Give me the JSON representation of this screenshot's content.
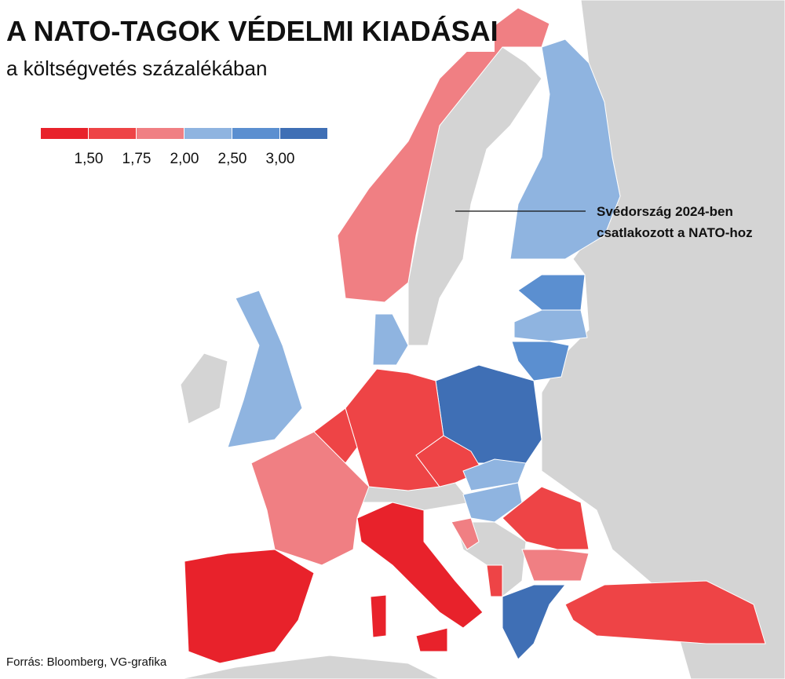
{
  "header": {
    "title": "A NATO-TAGOK VÉDELMI KIADÁSAI",
    "subtitle": "a költségvetés százalékában"
  },
  "legend": {
    "colors": [
      "#e8222b",
      "#ee4446",
      "#f07f83",
      "#8fb4e0",
      "#5b8fd0",
      "#3f6fb5"
    ],
    "labels": [
      "1,50",
      "1,75",
      "2,00",
      "2,50",
      "3,00"
    ]
  },
  "annotation": {
    "lines": [
      "Svédország 2024-ben",
      "csatlakozott a NATO-hoz"
    ]
  },
  "source": "Forrás: Bloomberg, VG-grafika"
}
